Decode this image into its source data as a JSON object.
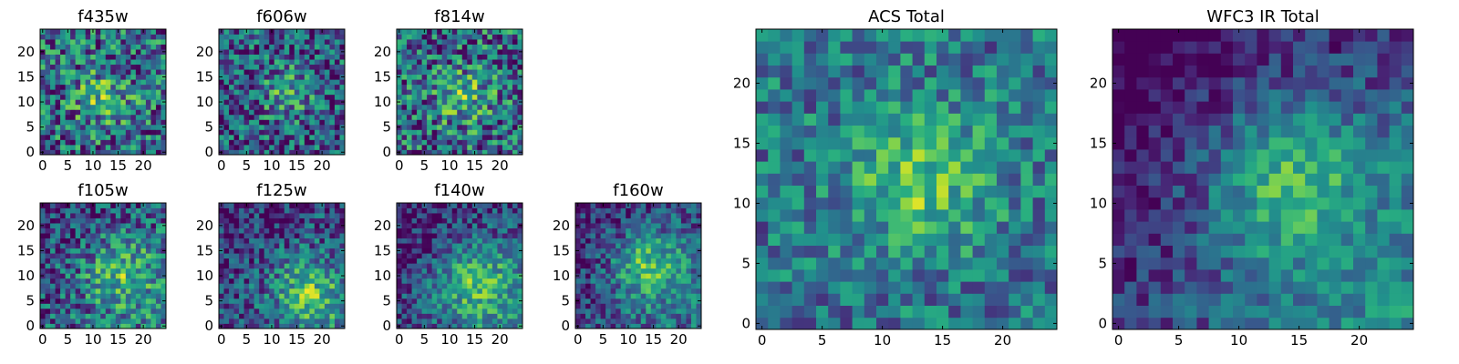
{
  "chart_data": [
    {
      "type": "heatmap",
      "title": "f435w",
      "x_ticks": [
        "0",
        "5",
        "10",
        "15",
        "20"
      ],
      "y_ticks": [
        "0",
        "5",
        "10",
        "15",
        "20"
      ],
      "grid": 25,
      "center": [
        12,
        11
      ],
      "signal": 0.3,
      "sigma": 4.0,
      "noise": 0.55,
      "offset": 0.35,
      "ramp": 0,
      "seed": 11,
      "colormap": "viridis"
    },
    {
      "type": "heatmap",
      "title": "f606w",
      "x_ticks": [
        "0",
        "5",
        "10",
        "15",
        "20"
      ],
      "y_ticks": [
        "0",
        "5",
        "10",
        "15",
        "20"
      ],
      "grid": 25,
      "center": [
        13,
        12
      ],
      "signal": 0.3,
      "sigma": 3.5,
      "noise": 0.5,
      "offset": 0.3,
      "ramp": 0,
      "seed": 23,
      "colormap": "viridis"
    },
    {
      "type": "heatmap",
      "title": "f814w",
      "x_ticks": [
        "0",
        "5",
        "10",
        "15",
        "20"
      ],
      "y_ticks": [
        "0",
        "5",
        "10",
        "15",
        "20"
      ],
      "grid": 25,
      "center": [
        13,
        11
      ],
      "signal": 0.3,
      "sigma": 4.0,
      "noise": 0.55,
      "offset": 0.35,
      "ramp": 0,
      "seed": 37,
      "colormap": "viridis"
    },
    {
      "type": "heatmap",
      "title": "f105w",
      "x_ticks": [
        "0",
        "5",
        "10",
        "15",
        "20"
      ],
      "y_ticks": [
        "0",
        "5",
        "10",
        "15",
        "20"
      ],
      "grid": 25,
      "center": [
        15,
        11
      ],
      "signal": 0.35,
      "sigma": 5.0,
      "noise": 0.45,
      "offset": 0.3,
      "ramp": 0.15,
      "seed": 41,
      "colormap": "viridis"
    },
    {
      "type": "heatmap",
      "title": "f125w",
      "x_ticks": [
        "0",
        "5",
        "10",
        "15",
        "20"
      ],
      "y_ticks": [
        "0",
        "5",
        "10",
        "15",
        "20"
      ],
      "grid": 25,
      "center": [
        17,
        7
      ],
      "signal": 0.4,
      "sigma": 5.0,
      "noise": 0.4,
      "offset": 0.25,
      "ramp": 0.15,
      "seed": 53,
      "colormap": "viridis"
    },
    {
      "type": "heatmap",
      "title": "f140w",
      "x_ticks": [
        "0",
        "5",
        "10",
        "15",
        "20"
      ],
      "y_ticks": [
        "0",
        "5",
        "10",
        "15",
        "20"
      ],
      "grid": 25,
      "center": [
        15,
        9
      ],
      "signal": 0.4,
      "sigma": 5.5,
      "noise": 0.35,
      "offset": 0.25,
      "ramp": 0.2,
      "seed": 67,
      "colormap": "viridis"
    },
    {
      "type": "heatmap",
      "title": "f160w",
      "x_ticks": [
        "0",
        "5",
        "10",
        "15",
        "20"
      ],
      "y_ticks": [
        "0",
        "5",
        "10",
        "15",
        "20"
      ],
      "grid": 25,
      "center": [
        14,
        12
      ],
      "signal": 0.45,
      "sigma": 5.0,
      "noise": 0.35,
      "offset": 0.25,
      "ramp": 0.15,
      "seed": 79,
      "colormap": "viridis"
    },
    {
      "type": "heatmap",
      "title": "ACS Total",
      "x_ticks": [
        "0",
        "5",
        "10",
        "15",
        "20"
      ],
      "y_ticks": [
        "0",
        "5",
        "10",
        "15",
        "20"
      ],
      "grid": 25,
      "center": [
        13,
        12
      ],
      "signal": 0.35,
      "sigma": 4.0,
      "noise": 0.35,
      "offset": 0.4,
      "ramp": 0,
      "seed": 91,
      "colormap": "viridis"
    },
    {
      "type": "heatmap",
      "title": "WFC3 IR Total",
      "x_ticks": [
        "0",
        "5",
        "10",
        "15",
        "20"
      ],
      "y_ticks": [
        "0",
        "5",
        "10",
        "15",
        "20"
      ],
      "grid": 25,
      "center": [
        14,
        12
      ],
      "signal": 0.45,
      "sigma": 5.0,
      "noise": 0.25,
      "offset": 0.2,
      "ramp": 0.3,
      "seed": 103,
      "colormap": "viridis"
    }
  ]
}
